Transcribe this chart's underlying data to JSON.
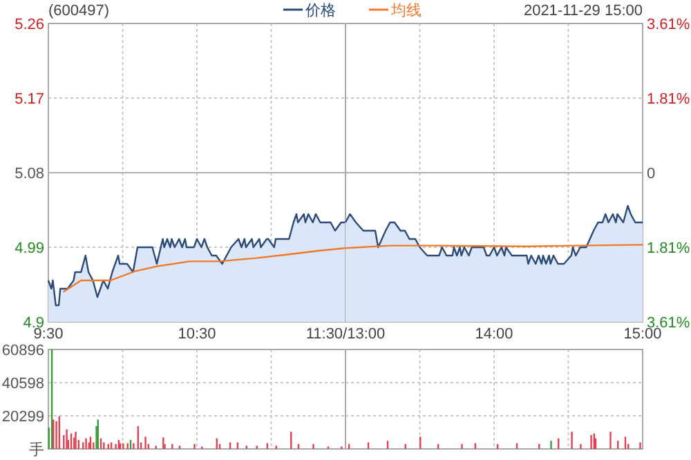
{
  "chart_data": [
    {
      "type": "area",
      "title": "(600497)",
      "legend": "top",
      "grid": true,
      "xlim": [
        9.5,
        11.5
      ],
      "xticks": [
        {
          "value": 9.5,
          "label": "9:30"
        },
        {
          "value": 10,
          "label": null
        },
        {
          "value": 10.5,
          "label": "10:30"
        },
        {
          "value": 11,
          "label": null
        },
        {
          "value": 11.5,
          "label": "11:30/13:00"
        }
      ],
      "ylim": [
        4.9,
        5.26
      ],
      "yticks": [
        4.9,
        4.99,
        5.08,
        5.17,
        5.26
      ],
      "ref_lines": [
        {
          "axis": "y",
          "value": 5.08,
          "color": "#b0b0b0"
        }
      ],
      "series": [
        {
          "name": "价格",
          "type": "area",
          "color": "#2b4a78",
          "x": [
            9.5,
            9.52,
            9.53,
            9.55,
            9.57,
            9.58,
            9.6,
            9.63,
            9.67,
            9.68,
            9.72,
            9.75,
            9.77,
            9.8,
            9.83,
            9.87,
            9.9,
            9.93,
            9.97,
            9.98,
            10.03,
            10.07,
            10.1,
            10.2,
            10.23,
            10.27,
            10.28,
            10.3,
            10.32,
            10.33,
            10.35,
            10.38,
            10.4,
            10.42,
            10.43,
            10.48,
            10.5,
            10.53,
            10.55,
            10.57,
            10.6,
            10.63,
            10.67,
            10.7,
            10.73,
            10.78,
            10.8,
            10.82,
            10.83,
            10.87,
            10.88,
            10.92,
            10.93,
            10.97,
            10.98,
            11.02,
            11.03,
            11.12,
            11.15,
            11.17,
            11.18,
            11.22,
            11.23,
            11.25,
            11.28,
            11.3,
            11.33,
            11.4,
            11.43,
            11.47,
            11.5
          ],
          "values": [
            4.95,
            4.94,
            4.95,
            4.92,
            4.92,
            4.94,
            4.94,
            4.94,
            4.95,
            4.96,
            4.96,
            4.98,
            4.96,
            4.95,
            4.93,
            4.95,
            4.94,
            4.96,
            4.98,
            4.97,
            4.97,
            4.96,
            4.99,
            4.99,
            4.97,
            5.0,
            4.99,
            5.0,
            4.99,
            5.0,
            4.99,
            5.0,
            4.99,
            5.0,
            4.99,
            4.99,
            5.0,
            4.99,
            5.0,
            4.99,
            4.98,
            4.98,
            4.97,
            4.98,
            4.99,
            5.0,
            4.99,
            5.0,
            4.99,
            5.0,
            4.99,
            5.0,
            4.99,
            5.0,
            5.0,
            4.99,
            5.0,
            5.0,
            5.02,
            5.03,
            5.02,
            5.03,
            5.02,
            5.03,
            5.02,
            5.03,
            5.02,
            5.02,
            5.01,
            5.02,
            5.02
          ]
        },
        {
          "name": "均线",
          "type": "line",
          "color": "#f07828",
          "x": [
            9.6,
            9.72,
            9.92,
            10.08,
            10.23,
            10.45,
            10.65,
            10.9,
            11.1,
            11.33,
            11.5
          ],
          "values": [
            4.936,
            4.95,
            4.95,
            4.961,
            4.967,
            4.973,
            4.973,
            4.977,
            4.981,
            4.986,
            4.989
          ]
        }
      ]
    },
    {
      "type": "area",
      "subtitle": "2021-11-29 15:00",
      "grid": true,
      "tick_labels": "x",
      "xlim": [
        13,
        15
      ],
      "xticks": [
        {
          "value": 13.5,
          "label": null
        },
        {
          "value": 14,
          "label": "14:00"
        },
        {
          "value": 14.5,
          "label": null
        },
        {
          "value": 15,
          "label": "15:00"
        }
      ],
      "ylim": [
        4.9,
        5.26
      ],
      "yticks": [
        4.9,
        4.99,
        5.08,
        5.17,
        5.26
      ],
      "y2lim": [
        -3.61,
        3.61
      ],
      "y2ticks": [
        {
          "value": -3.61,
          "label": "3.61%"
        },
        {
          "value": -1.81,
          "label": "1.81%"
        },
        {
          "value": 0,
          "label": "0"
        },
        {
          "value": 1.81,
          "label": "1.81%"
        },
        {
          "value": 3.61,
          "label": "3.61%"
        }
      ],
      "ref_lines": [
        {
          "axis": "y",
          "value": 5.08,
          "color": "#b0b0b0"
        }
      ],
      "series": [
        {
          "type": "area",
          "color": "#2b4a78",
          "x": [
            13,
            13.03,
            13.07,
            13.12,
            13.13,
            13.17,
            13.2,
            13.22,
            13.27,
            13.3,
            13.33,
            13.37,
            13.4,
            13.43,
            13.47,
            13.5,
            13.55,
            13.63,
            13.65,
            13.68,
            13.72,
            13.73,
            13.75,
            13.77,
            13.78,
            13.8,
            13.83,
            13.85,
            13.93,
            13.95,
            13.97,
            14,
            14.02,
            14.05,
            14.07,
            14.08,
            14.12,
            14.22,
            14.23,
            14.25,
            14.28,
            14.3,
            14.32,
            14.33,
            14.35,
            14.37,
            14.38,
            14.4,
            14.43,
            14.47,
            14.52,
            14.53,
            14.55,
            14.58,
            14.62,
            14.67,
            14.7,
            14.73,
            14.75,
            14.77,
            14.8,
            14.82,
            14.83,
            14.87,
            14.9,
            14.92,
            14.95,
            15
          ],
          "values": [
            5.02,
            5.03,
            5.02,
            5.01,
            5.01,
            5.01,
            5.01,
            4.99,
            5.01,
            5.02,
            5.02,
            5.01,
            5.01,
            5.0,
            5.0,
            4.99,
            4.98,
            4.98,
            4.99,
            4.98,
            4.98,
            4.99,
            4.98,
            4.99,
            4.98,
            4.99,
            4.98,
            4.99,
            4.99,
            4.98,
            4.98,
            4.99,
            4.98,
            4.99,
            4.98,
            4.99,
            4.98,
            4.98,
            4.97,
            4.98,
            4.97,
            4.98,
            4.97,
            4.98,
            4.97,
            4.98,
            4.97,
            4.98,
            4.97,
            4.97,
            4.98,
            4.99,
            4.98,
            4.99,
            4.99,
            5.01,
            5.02,
            5.02,
            5.03,
            5.02,
            5.03,
            5.02,
            5.03,
            5.02,
            5.04,
            5.03,
            5.02,
            5.02
          ]
        },
        {
          "type": "line",
          "color": "#f07828",
          "x": [
            13,
            13.3,
            13.62,
            14.23,
            14.55,
            15
          ],
          "values": [
            4.989,
            4.992,
            4.992,
            4.991,
            4.992,
            4.993
          ]
        }
      ]
    },
    {
      "type": "bar",
      "grid": true,
      "tick_labels": "y",
      "xlim": [
        9.5,
        11.5
      ],
      "xticks": [
        10,
        10.5,
        11
      ],
      "ylim": [
        0,
        60896
      ],
      "yticks": [
        {
          "value": 0,
          "label": "手"
        },
        20299,
        40598,
        60896
      ],
      "x": [
        9.5,
        9.52,
        9.53,
        9.55,
        9.57,
        9.6,
        9.62,
        9.63,
        9.65,
        9.67,
        9.68,
        9.7,
        9.73,
        9.75,
        9.77,
        9.78,
        9.8,
        9.82,
        9.83,
        9.85,
        9.87,
        9.9,
        9.92,
        9.95,
        9.97,
        9.98,
        10,
        10.03,
        10.05,
        10.07,
        10.1,
        10.12,
        10.15,
        10.17,
        10.22,
        10.27,
        10.28,
        10.33,
        10.38,
        10.48,
        10.53,
        10.63,
        10.65,
        10.72,
        10.77,
        10.83,
        10.9,
        10.97,
        11.03,
        11.13,
        11.18,
        11.28,
        11.38,
        11.47
      ],
      "values": [
        13000,
        60896,
        18000,
        17000,
        20000,
        8500,
        12000,
        5500,
        9500,
        7000,
        10500,
        5500,
        4000,
        6500,
        4000,
        7500,
        4000,
        14000,
        18000,
        6500,
        4000,
        3000,
        4000,
        3000,
        5500,
        3500,
        3500,
        3500,
        5500,
        3500,
        14000,
        4000,
        7500,
        3000,
        2000,
        7000,
        3000,
        3000,
        2000,
        3000,
        1500,
        6500,
        3000,
        4000,
        4000,
        2000,
        2000,
        3500,
        2000,
        10500,
        3000,
        3000,
        1500,
        1500
      ],
      "colors": [
        "#3a9a3a",
        "#3a9a3a",
        "#e04050",
        "#e04050",
        "#e04050",
        "#e04050",
        "#e04050",
        "#e04050",
        "#e04050",
        "#e04050",
        "#e04050",
        "#e04050",
        "#e04050",
        "#e04050",
        "#e04050",
        "#e04050",
        "#e04050",
        "#3a9a3a",
        "#3a9a3a",
        "#e04050",
        "#e04050",
        "#e04050",
        "#e04050",
        "#e04050",
        "#e04050",
        "#e04050",
        "#e04050",
        "#e04050",
        "#3a9a3a",
        "#e04050",
        "#e04050",
        "#e04050",
        "#e04050",
        "#e04050",
        "#e04050",
        "#e04050",
        "#e04050",
        "#e04050",
        "#e04050",
        "#e04050",
        "#e04050",
        "#e04050",
        "#e04050",
        "#e04050",
        "#e04050",
        "#e04050",
        "#e04050",
        "#e04050",
        "#e04050",
        "#e04050",
        "#e04050",
        "#e04050",
        "#e04050",
        "#e04050"
      ]
    },
    {
      "type": "bar",
      "grid": true,
      "tick_labels": false,
      "xlim": [
        13,
        15
      ],
      "xticks": [
        13.5,
        14,
        14.5
      ],
      "ylim": [
        0,
        60896
      ],
      "yticks": [
        20299,
        40598
      ],
      "x": [
        13.02,
        13.15,
        13.28,
        13.4,
        13.5,
        13.62,
        13.78,
        13.87,
        14.02,
        14.15,
        14.3,
        14.38,
        14.43,
        14.52,
        14.58,
        14.65,
        14.67,
        14.68,
        14.78,
        14.83,
        14.88,
        14.9,
        14.98
      ],
      "values": [
        3000,
        4000,
        5000,
        3000,
        7500,
        3000,
        3000,
        3500,
        3000,
        3500,
        3000,
        5000,
        6500,
        10500,
        3000,
        8500,
        9500,
        6500,
        10500,
        5000,
        7500,
        3000,
        4000
      ],
      "colors": [
        "#e04050",
        "#e04050",
        "#e04050",
        "#e04050",
        "#e04050",
        "#e04050",
        "#e04050",
        "#e04050",
        "#e04050",
        "#e04050",
        "#e04050",
        "#3a9a3a",
        "#e04050",
        "#e04050",
        "#e04050",
        "#e04050",
        "#e04050",
        "#e04050",
        "#e04050",
        "#e04050",
        "#e04050",
        "#e04050",
        "#e04050"
      ]
    }
  ]
}
